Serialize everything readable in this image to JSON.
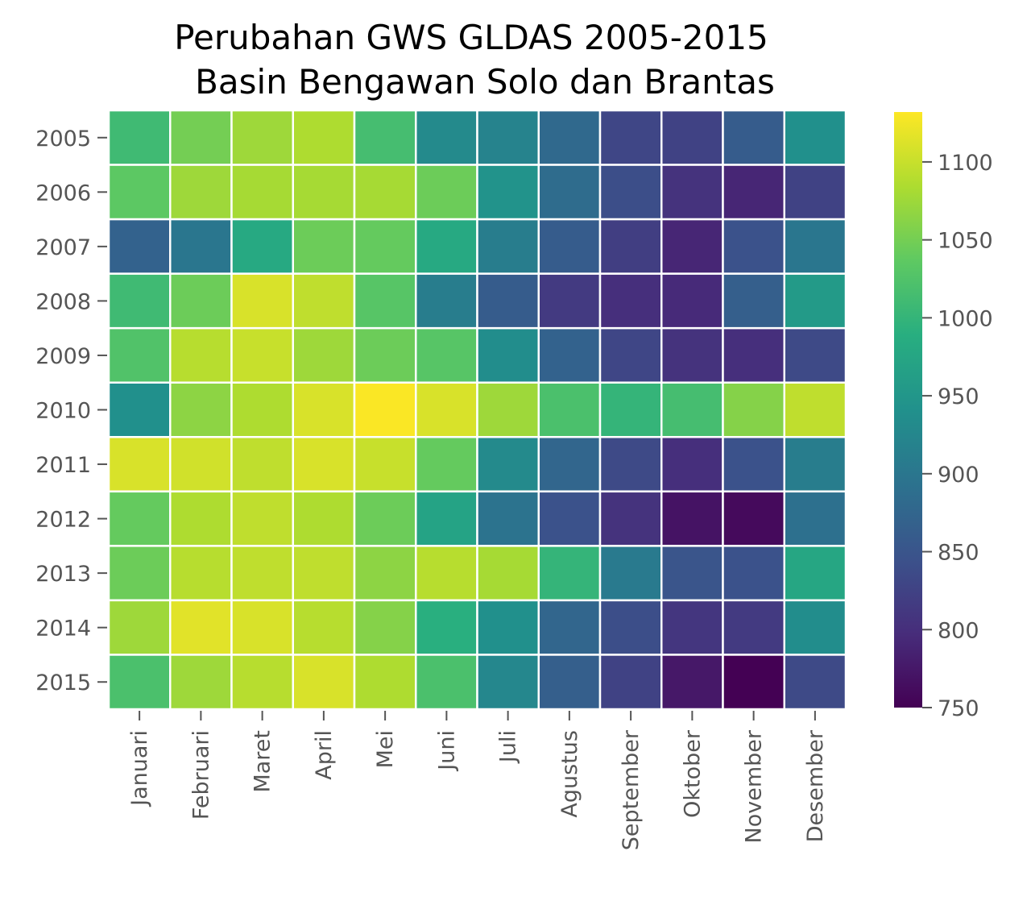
{
  "chart_data": {
    "type": "heatmap",
    "title_lines": [
      "Perubahan GWS GLDAS 2005-2015",
      "Basin Bengawan Solo dan Brantas"
    ],
    "x_categories": [
      "Januari",
      "Februari",
      "Maret",
      "April",
      "Mei",
      "Juni",
      "Juli",
      "Agustus",
      "September",
      "Oktober",
      "November",
      "Desember"
    ],
    "y_categories": [
      "2005",
      "2006",
      "2007",
      "2008",
      "2009",
      "2010",
      "2011",
      "2012",
      "2013",
      "2014",
      "2015"
    ],
    "values": [
      [
        1010,
        1050,
        1075,
        1085,
        1015,
        930,
        920,
        880,
        830,
        825,
        860,
        940
      ],
      [
        1035,
        1075,
        1080,
        1080,
        1080,
        1045,
        945,
        885,
        840,
        805,
        790,
        825
      ],
      [
        870,
        900,
        980,
        1045,
        1040,
        980,
        910,
        860,
        820,
        790,
        845,
        900
      ],
      [
        1010,
        1045,
        1110,
        1095,
        1030,
        910,
        860,
        815,
        800,
        795,
        865,
        955
      ],
      [
        1025,
        1090,
        1100,
        1075,
        1045,
        1030,
        935,
        870,
        830,
        805,
        800,
        835
      ],
      [
        940,
        1065,
        1085,
        1110,
        1130,
        1110,
        1075,
        1020,
        1000,
        1015,
        1060,
        1095
      ],
      [
        1110,
        1105,
        1095,
        1110,
        1100,
        1040,
        930,
        875,
        835,
        800,
        845,
        910
      ],
      [
        1040,
        1085,
        1095,
        1085,
        1045,
        970,
        895,
        845,
        805,
        770,
        760,
        890
      ],
      [
        1045,
        1090,
        1095,
        1095,
        1065,
        1090,
        1080,
        1000,
        905,
        850,
        845,
        975
      ],
      [
        1075,
        1115,
        1110,
        1090,
        1060,
        990,
        940,
        875,
        840,
        810,
        815,
        935
      ],
      [
        1020,
        1075,
        1090,
        1110,
        1085,
        1020,
        925,
        865,
        825,
        775,
        750,
        835
      ]
    ],
    "colorbar": {
      "min": 750,
      "max": 1132,
      "ticks": [
        750,
        800,
        850,
        900,
        950,
        1000,
        1050,
        1100
      ]
    },
    "colormap": "viridis",
    "grid": false,
    "legend": "colorbar-right"
  }
}
